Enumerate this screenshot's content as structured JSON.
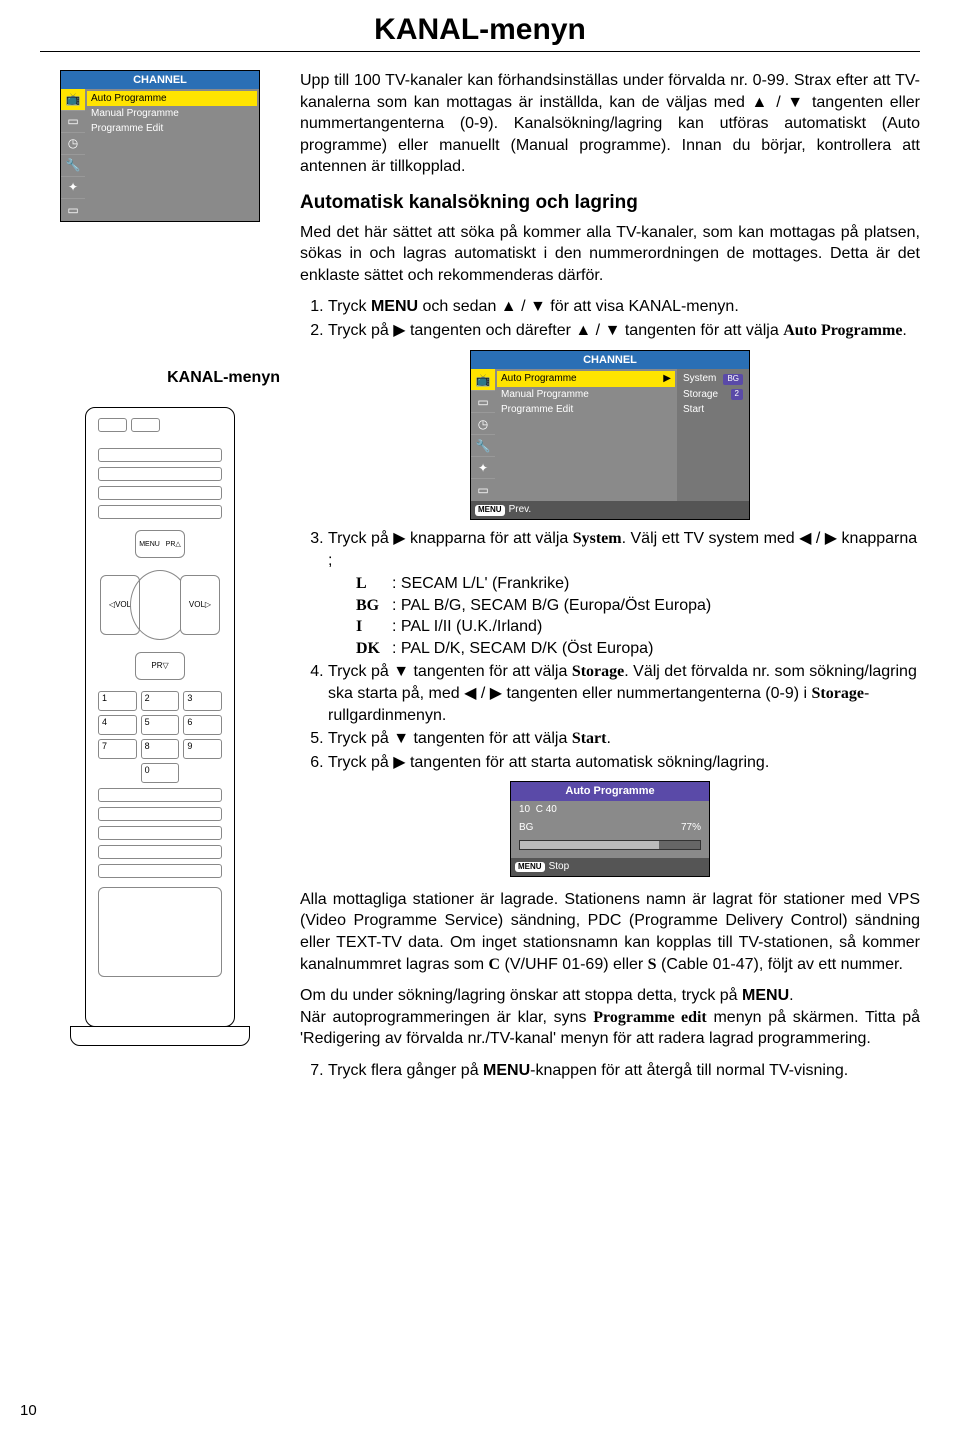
{
  "page": {
    "title": "KANAL-menyn",
    "number": "10"
  },
  "left": {
    "osd_header": "CHANNEL",
    "osd_items": [
      "Auto Programme",
      "Manual Programme",
      "Programme Edit"
    ],
    "label": "KANAL-menyn"
  },
  "remote": {
    "dpad": {
      "up": "PR",
      "down": "PR",
      "left": "VOL",
      "right": "VOL",
      "menu": "MENU"
    },
    "nums": [
      "1",
      "2",
      "3",
      "4",
      "5",
      "6",
      "7",
      "8",
      "9",
      "",
      "0",
      ""
    ]
  },
  "intro": {
    "p": "Upp till 100 TV-kanaler kan förhandsinställas under förvalda nr. 0-99. Strax efter att TV-kanalerna som kan mottagas är inställda, kan de väljas med ▲ / ▼ tangenten eller nummertangenterna (0-9). Kanalsökning/lagring kan utföras automatiskt (Auto programme) eller manuellt (Manual programme). Innan du börjar, kontrollera att antennen är tillkopplad."
  },
  "auto": {
    "heading": "Automatisk kanalsökning och lagring",
    "p1": "Med det här sättet att söka på kommer alla TV-kanaler, som kan mottagas på platsen, sökas in och lagras automatiskt i den nummerordningen de mottages. Detta är det enklaste sättet och rekommenderas därför.",
    "step1a": "Tryck ",
    "step1b": "MENU",
    "step1c": " och sedan ▲ / ▼ för att visa KANAL-menyn.",
    "step2a": "Tryck på ▶ tangenten och därefter ▲ / ▼ tangenten för att välja ",
    "step2b": "Auto Programme",
    "step2c": "."
  },
  "osd2": {
    "header": "CHANNEL",
    "items": [
      "Auto Programme",
      "Manual Programme",
      "Programme Edit"
    ],
    "sub": [
      {
        "k": "System",
        "v": "BG"
      },
      {
        "k": "Storage",
        "v": "2"
      },
      {
        "k": "Start",
        "v": ""
      }
    ],
    "footer_btn": "MENU",
    "footer_txt": "Prev."
  },
  "mid": {
    "step3a": "Tryck på ▶ knapparna för att välja ",
    "step3b": "System",
    "step3c": ". Välj ett TV system med ◀ / ▶ knapparna ;",
    "sys": [
      {
        "k": "L",
        "v": ": SECAM L/L' (Frankrike)"
      },
      {
        "k": "BG",
        "v": ": PAL B/G, SECAM B/G (Europa/Öst Europa)"
      },
      {
        "k": "I",
        "v": ": PAL I/II (U.K./Irland)"
      },
      {
        "k": "DK",
        "v": ": PAL D/K, SECAM D/K (Öst Europa)"
      }
    ],
    "step4a": "Tryck på ▼ tangenten för att välja ",
    "step4b": "Storage",
    "step4c": ". Välj det förvalda nr. som sökning/lagring ska starta på, med ◀ / ▶ tangenten eller nummertangenterna (0-9) i ",
    "step4d": "Storage",
    "step4e": "-rullgardinmenyn.",
    "step5a": "Tryck på ▼ tangenten för att välja ",
    "step5b": "Start",
    "step5c": ".",
    "step6": "Tryck på ▶ tangenten för att starta automatisk sökning/lagring."
  },
  "scan": {
    "header": "Auto Programme",
    "r1a": "10",
    "r1b": "C 40",
    "r2a": "BG",
    "r2b": "77%",
    "progress_pct": 77,
    "footer_btn": "MENU",
    "footer_txt": "Stop"
  },
  "tail": {
    "p1a": "Alla mottagliga stationer är lagrade. Stationens namn är lagrat för stationer med VPS (Video Programme Service) sändning, PDC (Programme Delivery Control) sändning eller TEXT-TV data. Om inget stationsnamn kan kopplas till TV-stationen, så kommer kanalnummret lagras som ",
    "p1b": "C",
    "p1c": " (V/UHF 01-69) eller ",
    "p1d": "S",
    "p1e": " (Cable 01-47), följt av ett nummer.",
    "p2a": "Om du under sökning/lagring önskar att stoppa detta, tryck på ",
    "p2b": "MENU",
    "p2c": ".",
    "p3a": "När autoprogrammeringen är klar, syns ",
    "p3b": "Programme edit",
    "p3c": " menyn på skärmen. Titta på 'Redigering av förvalda nr./TV-kanal' menyn för att radera lagrad programmering.",
    "step7a": "Tryck flera gånger på ",
    "step7b": "MENU",
    "step7c": "-knappen för att återgå till normal TV-visning."
  }
}
